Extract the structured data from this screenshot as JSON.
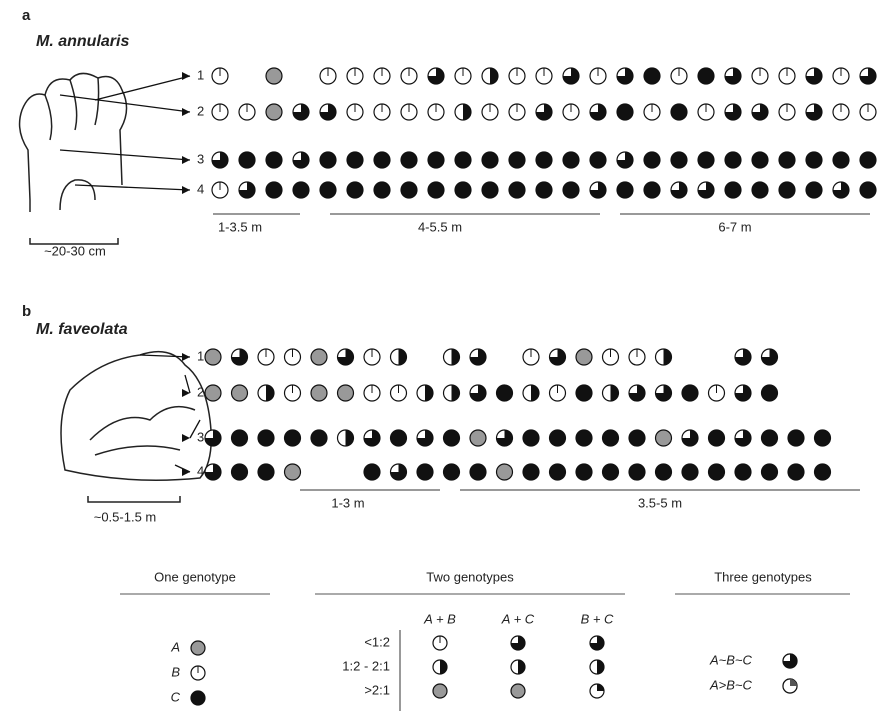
{
  "panels": [
    {
      "label": "a",
      "species": "M. annularis",
      "rows": [
        "1",
        "2",
        "3",
        "4"
      ],
      "scale": "~20-30 cm",
      "zones": [
        "1-3.5 m",
        "4-5.5 m",
        "6-7 m"
      ]
    },
    {
      "label": "b",
      "species": "M. faveolata",
      "rows": [
        "1",
        "2",
        "3",
        "4"
      ],
      "scale": "~0.5-1.5 m",
      "zones": [
        "1-3 m",
        "3.5-5 m"
      ]
    }
  ],
  "legend": {
    "one": {
      "title": "One genotype",
      "items": [
        "A",
        "B",
        "C"
      ]
    },
    "two": {
      "title": "Two genotypes",
      "columns": [
        "A + B",
        "A + C",
        "B + C"
      ],
      "ratios": [
        "<1:2",
        "1:2 - 2:1",
        ">2:1"
      ]
    },
    "three": {
      "title": "Three genotypes",
      "items": [
        "A~B~C",
        "A>B~C"
      ]
    }
  }
}
